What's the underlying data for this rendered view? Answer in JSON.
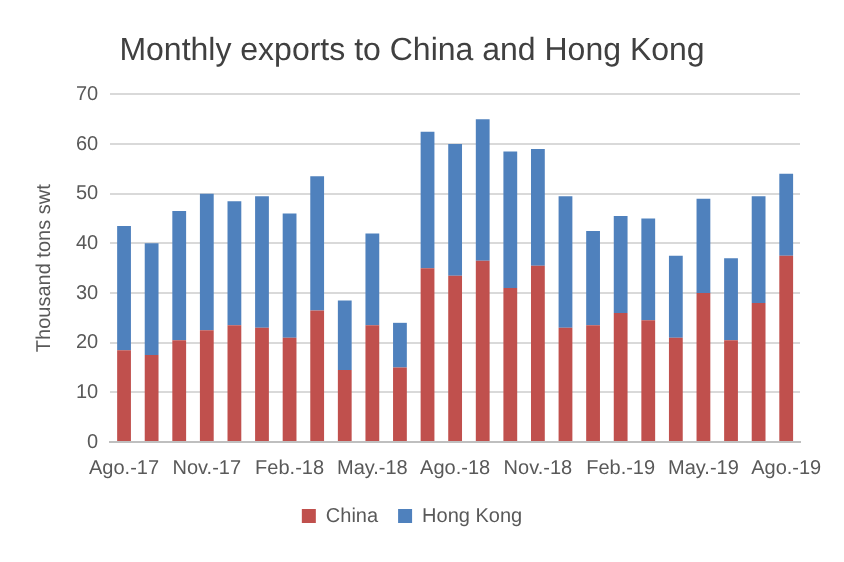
{
  "chart_data": {
    "type": "bar",
    "title": "Monthly exports to China and Hong Kong",
    "ylabel": "Thousand tons swt",
    "stacked": true,
    "categories": [
      "Ago.-17",
      null,
      null,
      "Nov.-17",
      null,
      null,
      "Feb.-18",
      null,
      null,
      "May.-18",
      null,
      null,
      "Ago.-18",
      null,
      null,
      "Nov.-18",
      null,
      null,
      "Feb.-19",
      null,
      null,
      "May.-19",
      null,
      null,
      "Ago.-19"
    ],
    "series": [
      {
        "name": "China",
        "color": "#c0504d",
        "values": [
          18.5,
          17.5,
          20.5,
          22.5,
          23.5,
          23,
          21,
          26.5,
          14.5,
          23.5,
          15,
          35,
          33.5,
          36.5,
          31,
          35.5,
          23,
          23.5,
          26,
          24.5,
          21,
          30,
          20.5,
          28,
          37.5
        ]
      },
      {
        "name": "Hong Kong",
        "color": "#4f81bd",
        "values": [
          25,
          22.5,
          26,
          27.5,
          25,
          26.5,
          25,
          27,
          14,
          18.5,
          9,
          27.5,
          26.5,
          28.5,
          27.5,
          23.5,
          26.5,
          19,
          19.5,
          20.5,
          16.5,
          19,
          16.5,
          21.5,
          16.5
        ]
      }
    ],
    "ylim": [
      0,
      70
    ],
    "yticks": [
      0,
      10,
      20,
      30,
      40,
      50,
      60,
      70
    ],
    "grid": "y",
    "legend": "bottom"
  }
}
